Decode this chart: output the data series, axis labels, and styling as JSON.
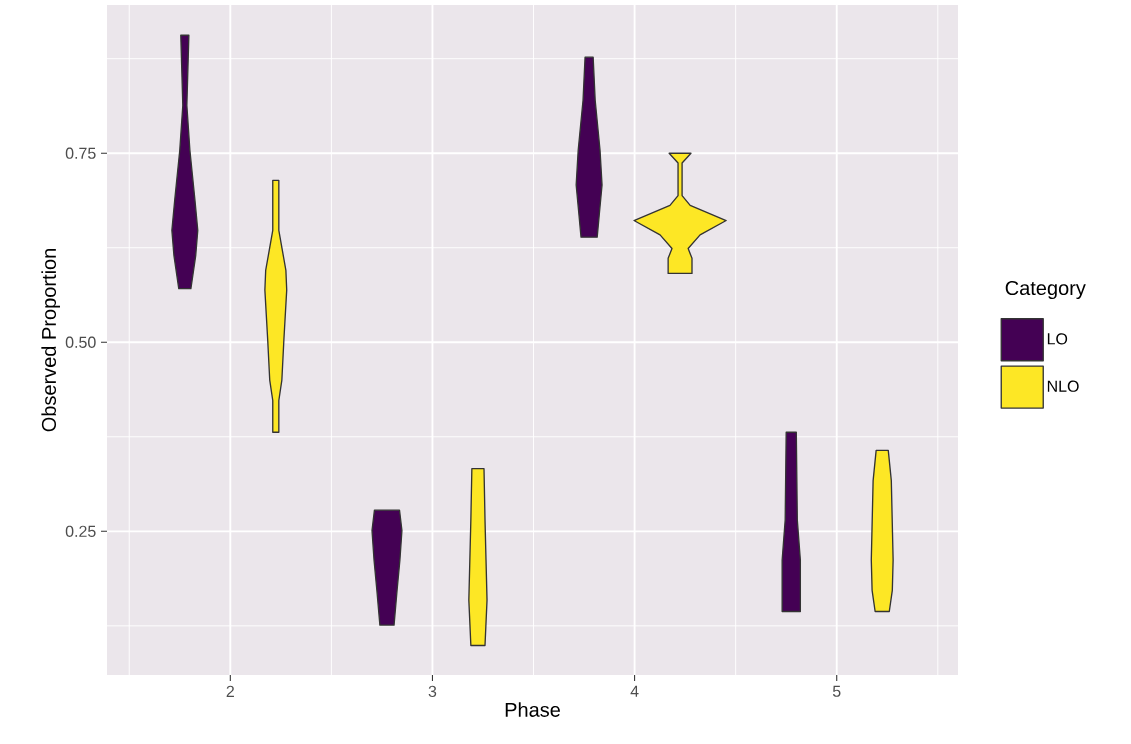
{
  "chart_data": {
    "type": "area",
    "xlabel": "Phase",
    "ylabel": "Observed Proportion",
    "legend_title": "Category",
    "xlim": [
      1.39,
      5.6
    ],
    "ylim": [
      0.06,
      0.946
    ],
    "xticks": [
      2,
      3,
      4,
      5
    ],
    "yticks": [
      0.25,
      {
        "value": 0.5,
        "label": "0.50"
      },
      0.75
    ],
    "grid": true,
    "legend": "right",
    "series": [
      {
        "name": "LO",
        "color": "#440154",
        "x": [
          1.795,
          1.785,
          1.8,
          1.825,
          1.839,
          1.829,
          1.805,
          1.745,
          1.721,
          1.711,
          1.725,
          1.75,
          1.765,
          1.755
        ],
        "values": [
          0.906,
          0.813,
          0.754,
          0.688,
          0.648,
          0.615,
          0.571,
          0.571,
          0.615,
          0.648,
          0.688,
          0.754,
          0.813,
          0.906
        ]
      },
      {
        "name": "NLO",
        "color": "#fde725",
        "x": [
          2.24,
          2.24,
          2.275,
          2.279,
          2.265,
          2.255,
          2.24,
          2.24,
          2.21,
          2.21,
          2.195,
          2.185,
          2.171,
          2.175,
          2.21,
          2.21
        ],
        "values": [
          0.714,
          0.648,
          0.595,
          0.569,
          0.503,
          0.45,
          0.423,
          0.381,
          0.381,
          0.423,
          0.45,
          0.503,
          0.569,
          0.595,
          0.648,
          0.714
        ]
      },
      {
        "color": "#440154",
        "x": [
          2.837,
          2.849,
          2.839,
          2.825,
          2.81,
          2.74,
          2.725,
          2.711,
          2.701,
          2.713
        ],
        "values": [
          0.278,
          0.251,
          0.212,
          0.172,
          0.126,
          0.126,
          0.172,
          0.212,
          0.251,
          0.278
        ]
      },
      {
        "color": "#fde725",
        "x": [
          3.255,
          3.26,
          3.265,
          3.27,
          3.26,
          3.19,
          3.18,
          3.185,
          3.19,
          3.195
        ],
        "values": [
          0.333,
          0.265,
          0.212,
          0.159,
          0.099,
          0.099,
          0.159,
          0.212,
          0.265,
          0.333
        ]
      },
      {
        "color": "#440154",
        "x": [
          3.795,
          3.805,
          3.829,
          3.839,
          3.825,
          3.815,
          3.735,
          3.725,
          3.711,
          3.721,
          3.745,
          3.755
        ],
        "values": [
          0.877,
          0.82,
          0.754,
          0.708,
          0.668,
          0.639,
          0.639,
          0.668,
          0.708,
          0.754,
          0.82,
          0.877
        ]
      },
      {
        "color": "#fde725",
        "x": [
          4.279,
          4.235,
          4.235,
          4.275,
          4.453,
          4.324,
          4.265,
          4.284,
          4.284,
          4.166,
          4.166,
          4.185,
          4.126,
          3.997,
          4.175,
          4.215,
          4.215,
          4.171
        ],
        "values": [
          0.75,
          0.737,
          0.694,
          0.681,
          0.661,
          0.642,
          0.624,
          0.611,
          0.591,
          0.591,
          0.611,
          0.624,
          0.642,
          0.661,
          0.681,
          0.694,
          0.737,
          0.75
        ]
      },
      {
        "color": "#440154",
        "x": [
          4.8,
          4.805,
          4.82,
          4.82,
          4.73,
          4.73,
          4.745,
          4.75
        ],
        "values": [
          0.381,
          0.265,
          0.212,
          0.144,
          0.144,
          0.212,
          0.265,
          0.381
        ]
      },
      {
        "color": "#fde725",
        "x": [
          5.255,
          5.27,
          5.279,
          5.275,
          5.26,
          5.19,
          5.175,
          5.171,
          5.18,
          5.195
        ],
        "values": [
          0.357,
          0.317,
          0.212,
          0.172,
          0.144,
          0.144,
          0.172,
          0.212,
          0.317,
          0.357
        ]
      }
    ]
  }
}
